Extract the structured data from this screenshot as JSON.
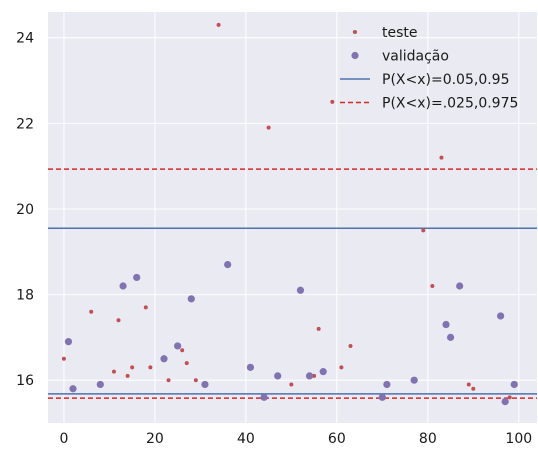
{
  "chart_data": {
    "type": "scatter",
    "title": "",
    "xlabel": "",
    "ylabel": "",
    "xlim": [
      -3.5,
      104
    ],
    "ylim": [
      15.0,
      24.6
    ],
    "xticks": [
      0,
      20,
      40,
      60,
      80,
      100
    ],
    "yticks": [
      16,
      18,
      20,
      22,
      24
    ],
    "grid": true,
    "legend_position": "top-right",
    "colors": {
      "background": "#eaeaf2",
      "grid": "#ffffff",
      "teste": "#c44e52",
      "validacao": "#8172b2",
      "p95": "#4c72b0",
      "p975": "#d62728"
    },
    "series": [
      {
        "name": "teste",
        "kind": "points",
        "x": [
          0,
          6,
          11,
          12,
          14,
          15,
          18,
          19,
          23,
          26,
          27,
          29,
          34,
          45,
          50,
          55,
          56,
          59,
          61,
          63,
          79,
          81,
          83,
          89,
          90,
          98
        ],
        "y": [
          16.5,
          17.6,
          16.2,
          17.4,
          16.1,
          16.3,
          17.7,
          16.3,
          16.0,
          16.7,
          16.4,
          16.0,
          24.3,
          21.9,
          15.9,
          16.1,
          17.2,
          22.5,
          16.3,
          16.8,
          19.5,
          18.2,
          21.2,
          15.9,
          15.8,
          15.6
        ]
      },
      {
        "name": "validação",
        "kind": "points",
        "x": [
          1,
          2,
          8,
          13,
          16,
          22,
          25,
          28,
          31,
          36,
          41,
          44,
          47,
          52,
          54,
          57,
          70,
          71,
          77,
          84,
          85,
          87,
          96,
          97,
          99
        ],
        "y": [
          16.9,
          15.8,
          15.9,
          18.2,
          18.4,
          16.5,
          16.8,
          17.9,
          15.9,
          18.7,
          16.3,
          15.6,
          16.1,
          18.1,
          16.1,
          16.2,
          15.6,
          15.9,
          16.0,
          17.3,
          17.0,
          18.2,
          17.5,
          15.5,
          15.9
        ]
      },
      {
        "name": "P(X<x)=0.05,0.95",
        "kind": "hlines",
        "values": [
          15.68,
          19.55
        ]
      },
      {
        "name": "P(X<x)=.025,0.975",
        "kind": "hlines",
        "values": [
          15.58,
          20.93
        ]
      }
    ]
  }
}
